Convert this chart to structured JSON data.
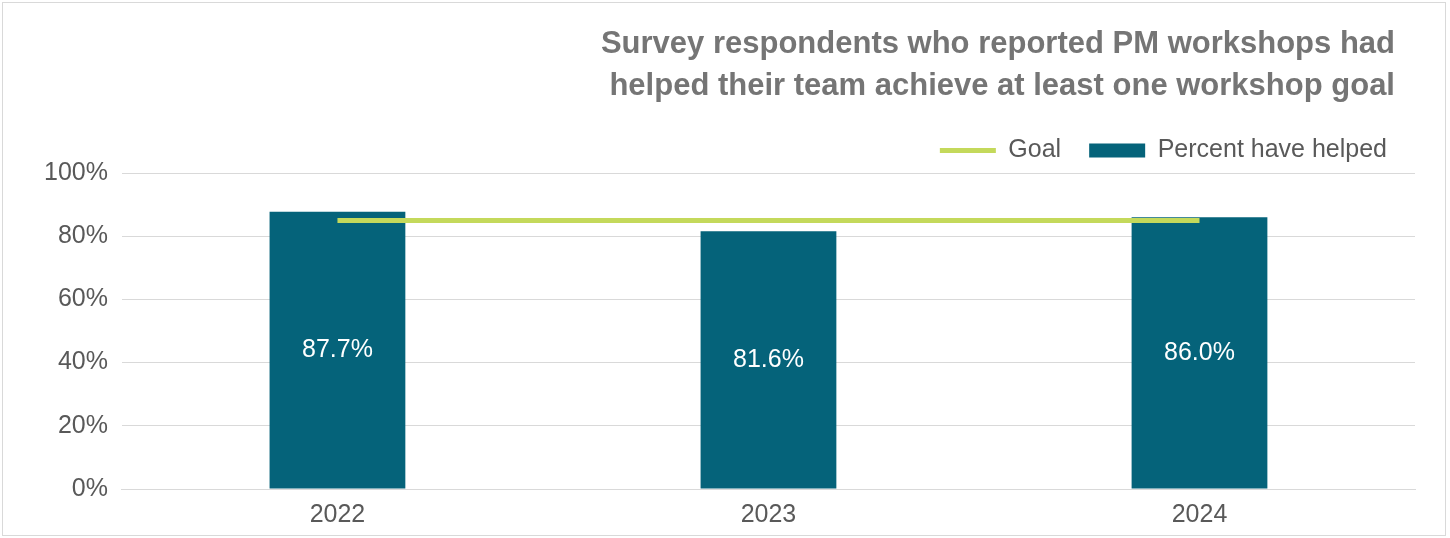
{
  "chart_data": {
    "type": "bar",
    "title": "Survey respondents who reported PM workshops had helped their team achieve at least one workshop goal",
    "categories": [
      "2022",
      "2023",
      "2024"
    ],
    "series": [
      {
        "name": "Percent have helped",
        "color": "#05637a",
        "values": [
          87.7,
          81.6,
          86.0
        ],
        "value_labels": [
          "87.7%",
          "81.6%",
          "86.0%"
        ]
      },
      {
        "name": "Goal",
        "type": "line",
        "color": "#c4d95b",
        "values": [
          85,
          85,
          85
        ]
      }
    ],
    "ylim": [
      0,
      100
    ],
    "yticks": [
      {
        "value": 0,
        "label": "0%"
      },
      {
        "value": 20,
        "label": "20%"
      },
      {
        "value": 40,
        "label": "40%"
      },
      {
        "value": 60,
        "label": "60%"
      },
      {
        "value": 80,
        "label": "80%"
      },
      {
        "value": 100,
        "label": "100%"
      }
    ],
    "grid": "y",
    "legend": "top right",
    "marker": "none"
  }
}
